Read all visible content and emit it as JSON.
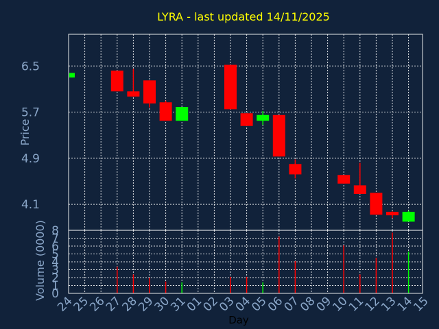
{
  "chart_data": {
    "type": "candlestick",
    "title": "LYRA - last updated 14/11/2025",
    "xlabel": "Day",
    "price_panel": {
      "ylabel": "Price",
      "ylim": [
        3.65,
        7.05
      ],
      "yticks": [
        "6.5",
        "5.7",
        "4.9",
        "4.1"
      ],
      "ytick_values": [
        6.5,
        5.7,
        4.9,
        4.1
      ]
    },
    "volume_panel": {
      "ylabel": "Volume (0000)",
      "ylim": [
        0,
        8
      ],
      "yticks": [
        "8",
        "7",
        "6",
        "5",
        "4",
        "3",
        "2",
        "1",
        "0"
      ],
      "ytick_values": [
        8,
        7,
        6,
        5,
        4,
        3,
        2,
        1,
        0
      ]
    },
    "x_ticks": [
      "24",
      "25",
      "26",
      "27",
      "28",
      "29",
      "30",
      "31",
      "01",
      "02",
      "03",
      "04",
      "05",
      "06",
      "07",
      "08",
      "09",
      "10",
      "11",
      "12",
      "13",
      "14",
      "15"
    ],
    "candles": [
      {
        "day": "24",
        "open": 6.3,
        "close": 6.38,
        "high": 6.38,
        "low": 6.3,
        "volume": 0.0
      },
      {
        "day": "27",
        "open": 6.42,
        "close": 6.06,
        "high": 6.42,
        "low": 6.06,
        "volume": 3.4
      },
      {
        "day": "28",
        "open": 6.06,
        "close": 5.97,
        "high": 6.45,
        "low": 5.97,
        "volume": 2.4
      },
      {
        "day": "29",
        "open": 6.25,
        "close": 5.85,
        "high": 6.25,
        "low": 5.78,
        "volume": 2.0
      },
      {
        "day": "30",
        "open": 5.87,
        "close": 5.55,
        "high": 5.9,
        "low": 5.55,
        "volume": 1.5
      },
      {
        "day": "31",
        "open": 5.55,
        "close": 5.79,
        "high": 5.79,
        "low": 5.55,
        "volume": 1.4
      },
      {
        "day": "03",
        "open": 6.52,
        "close": 5.75,
        "high": 6.52,
        "low": 5.75,
        "volume": 2.1
      },
      {
        "day": "04",
        "open": 5.68,
        "close": 5.46,
        "high": 5.68,
        "low": 5.46,
        "volume": 2.1
      },
      {
        "day": "05",
        "open": 5.55,
        "close": 5.65,
        "high": 5.72,
        "low": 5.48,
        "volume": 1.4
      },
      {
        "day": "06",
        "open": 5.65,
        "close": 4.93,
        "high": 5.65,
        "low": 4.93,
        "volume": 7.2
      },
      {
        "day": "07",
        "open": 4.8,
        "close": 4.62,
        "high": 4.88,
        "low": 4.55,
        "volume": 4.1
      },
      {
        "day": "10",
        "open": 4.61,
        "close": 4.46,
        "high": 4.61,
        "low": 4.46,
        "volume": 6.1
      },
      {
        "day": "11",
        "open": 4.43,
        "close": 4.28,
        "high": 4.82,
        "low": 4.28,
        "volume": 2.4
      },
      {
        "day": "12",
        "open": 4.3,
        "close": 3.92,
        "high": 4.3,
        "low": 3.92,
        "volume": 4.5
      },
      {
        "day": "13",
        "open": 3.97,
        "close": 3.91,
        "high": 3.98,
        "low": 3.86,
        "volume": 7.7
      },
      {
        "day": "14",
        "open": 3.8,
        "close": 3.97,
        "high": 3.99,
        "low": 3.8,
        "volume": 5.3
      }
    ],
    "grid": true,
    "colors": {
      "background": "#11223a",
      "up": "#00ff00",
      "down": "#ff0000",
      "title": "#ffff00",
      "tick": "#8aa6c8"
    }
  }
}
